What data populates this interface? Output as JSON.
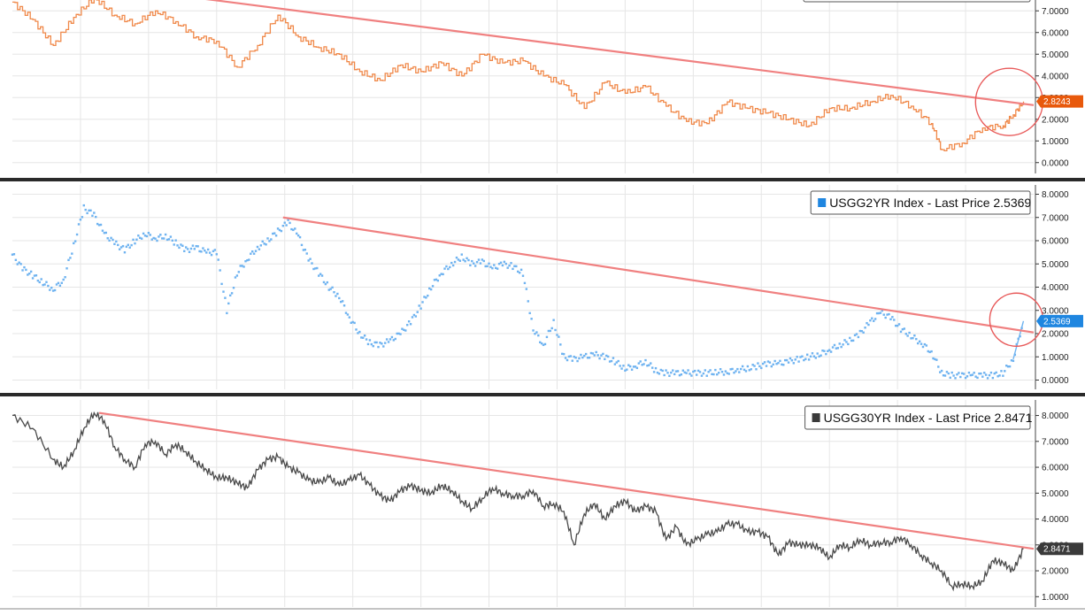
{
  "colors": {
    "background": "#ffffff",
    "grid": "#e6e6e6",
    "separator": "#2a2a2a",
    "trendline": "#f08080",
    "highlight_circle": "#e85a5a",
    "series_10yr": "#f0894a",
    "series_2yr": "#6fb3f0",
    "series_30yr": "#4a4a4a",
    "tag_10yr": "#e8590c",
    "tag_2yr": "#1f86e0",
    "tag_30yr": "#3a3a3a"
  },
  "chart_data": [
    {
      "type": "line",
      "panel": "top",
      "legend": "",
      "last_price_tag": "2.8243",
      "ylim": [
        -0.5,
        7.5
      ],
      "yticks": [
        "0.0000",
        "1.0000",
        "2.0000",
        "3.0000",
        "4.0000",
        "5.0000",
        "6.0000",
        "7.0000"
      ],
      "x_range": [
        0,
        100
      ],
      "series": [
        {
          "style": "step",
          "points": [
            [
              0,
              7.4
            ],
            [
              2,
              6.6
            ],
            [
              4,
              5.4
            ],
            [
              6,
              6.7
            ],
            [
              8,
              7.6
            ],
            [
              10,
              6.8
            ],
            [
              12,
              6.4
            ],
            [
              14,
              7.0
            ],
            [
              16,
              6.5
            ],
            [
              18,
              5.8
            ],
            [
              20,
              5.6
            ],
            [
              22,
              4.4
            ],
            [
              24,
              5.4
            ],
            [
              26,
              6.8
            ],
            [
              28,
              5.8
            ],
            [
              30,
              5.3
            ],
            [
              32,
              5.0
            ],
            [
              34,
              4.2
            ],
            [
              36,
              3.8
            ],
            [
              38,
              4.5
            ],
            [
              40,
              4.2
            ],
            [
              42,
              4.6
            ],
            [
              44,
              4.0
            ],
            [
              46,
              5.0
            ],
            [
              48,
              4.6
            ],
            [
              50,
              4.7
            ],
            [
              52,
              4.0
            ],
            [
              54,
              3.6
            ],
            [
              56,
              2.5
            ],
            [
              58,
              3.7
            ],
            [
              60,
              3.2
            ],
            [
              62,
              3.5
            ],
            [
              64,
              2.6
            ],
            [
              66,
              1.9
            ],
            [
              68,
              1.8
            ],
            [
              70,
              2.8
            ],
            [
              72,
              2.5
            ],
            [
              74,
              2.3
            ],
            [
              76,
              2.0
            ],
            [
              78,
              1.7
            ],
            [
              80,
              2.5
            ],
            [
              82,
              2.5
            ],
            [
              84,
              2.8
            ],
            [
              86,
              3.1
            ],
            [
              88,
              2.6
            ],
            [
              90,
              1.8
            ],
            [
              91,
              0.6
            ],
            [
              93,
              0.9
            ],
            [
              95,
              1.6
            ],
            [
              97,
              1.7
            ],
            [
              98,
              2.2
            ],
            [
              99,
              2.82
            ]
          ]
        }
      ],
      "trendline": [
        [
          18,
          7.6
        ],
        [
          100,
          2.65
        ]
      ],
      "highlight": [
        97.6,
        2.8
      ]
    },
    {
      "type": "scatter",
      "panel": "middle",
      "legend": "USGG2YR Index - Last Price 2.5369",
      "last_price_tag": "2.5369",
      "ylim": [
        -0.4,
        8.4
      ],
      "yticks": [
        "0.0000",
        "1.0000",
        "2.0000",
        "3.0000",
        "4.0000",
        "5.0000",
        "6.0000",
        "7.0000",
        "8.0000"
      ],
      "x_range": [
        0,
        100
      ],
      "series": [
        {
          "style": "dots",
          "points": [
            [
              0,
              5.4
            ],
            [
              1,
              4.8
            ],
            [
              2,
              4.5
            ],
            [
              3,
              4.2
            ],
            [
              4,
              3.9
            ],
            [
              5,
              4.3
            ],
            [
              6,
              5.8
            ],
            [
              7,
              7.4
            ],
            [
              8,
              7.1
            ],
            [
              9,
              6.3
            ],
            [
              10,
              5.9
            ],
            [
              11,
              5.6
            ],
            [
              12,
              6.0
            ],
            [
              13,
              6.3
            ],
            [
              14,
              6.1
            ],
            [
              15,
              6.2
            ],
            [
              16,
              5.9
            ],
            [
              17,
              5.6
            ],
            [
              18,
              5.7
            ],
            [
              19,
              5.5
            ],
            [
              20,
              5.5
            ],
            [
              21,
              3.0
            ],
            [
              22,
              4.6
            ],
            [
              23,
              5.2
            ],
            [
              24,
              5.7
            ],
            [
              25,
              6.0
            ],
            [
              26,
              6.4
            ],
            [
              27,
              6.8
            ],
            [
              28,
              6.2
            ],
            [
              29,
              5.2
            ],
            [
              30,
              4.6
            ],
            [
              31,
              4.0
            ],
            [
              32,
              3.6
            ],
            [
              33,
              2.7
            ],
            [
              34,
              2.0
            ],
            [
              35,
              1.6
            ],
            [
              36,
              1.5
            ],
            [
              37,
              1.7
            ],
            [
              38,
              2.0
            ],
            [
              39,
              2.5
            ],
            [
              40,
              3.2
            ],
            [
              41,
              4.0
            ],
            [
              42,
              4.6
            ],
            [
              43,
              5.0
            ],
            [
              44,
              5.3
            ],
            [
              45,
              5.0
            ],
            [
              46,
              5.1
            ],
            [
              47,
              4.8
            ],
            [
              48,
              5.0
            ],
            [
              49,
              4.9
            ],
            [
              50,
              4.6
            ],
            [
              51,
              2.2
            ],
            [
              52,
              1.5
            ],
            [
              53,
              2.5
            ],
            [
              54,
              1.0
            ],
            [
              55,
              0.9
            ],
            [
              56,
              1.0
            ],
            [
              57,
              1.1
            ],
            [
              58,
              1.0
            ],
            [
              59,
              0.8
            ],
            [
              60,
              0.5
            ],
            [
              61,
              0.6
            ],
            [
              62,
              0.8
            ],
            [
              63,
              0.4
            ],
            [
              64,
              0.3
            ],
            [
              65,
              0.3
            ],
            [
              66,
              0.3
            ],
            [
              67,
              0.3
            ],
            [
              68,
              0.3
            ],
            [
              69,
              0.35
            ],
            [
              70,
              0.35
            ],
            [
              71,
              0.45
            ],
            [
              72,
              0.5
            ],
            [
              73,
              0.6
            ],
            [
              74,
              0.7
            ],
            [
              75,
              0.7
            ],
            [
              76,
              0.8
            ],
            [
              77,
              0.9
            ],
            [
              78,
              1.0
            ],
            [
              79,
              1.1
            ],
            [
              80,
              1.3
            ],
            [
              81,
              1.5
            ],
            [
              82,
              1.7
            ],
            [
              83,
              2.0
            ],
            [
              84,
              2.5
            ],
            [
              85,
              2.9
            ],
            [
              86,
              2.7
            ],
            [
              87,
              2.2
            ],
            [
              88,
              1.9
            ],
            [
              89,
              1.6
            ],
            [
              90,
              1.2
            ],
            [
              91,
              0.3
            ],
            [
              92,
              0.2
            ],
            [
              93,
              0.2
            ],
            [
              94,
              0.2
            ],
            [
              95,
              0.2
            ],
            [
              96,
              0.2
            ],
            [
              97,
              0.3
            ],
            [
              98,
              0.9
            ],
            [
              99,
              2.54
            ]
          ]
        }
      ],
      "trendline": [
        [
          26.5,
          7.0
        ],
        [
          100,
          2.05
        ]
      ],
      "highlight": [
        98.3,
        2.6
      ]
    },
    {
      "type": "line",
      "panel": "bottom",
      "legend": "USGG30YR Index - Last Price 2.8471",
      "last_price_tag": "2.8471",
      "ylim": [
        0.6,
        8.6
      ],
      "yticks": [
        "1.0000",
        "2.0000",
        "3.0000",
        "4.0000",
        "5.0000",
        "6.0000",
        "7.0000",
        "8.0000"
      ],
      "x_range": [
        0,
        100
      ],
      "series": [
        {
          "style": "line",
          "points": [
            [
              0,
              8.0
            ],
            [
              2,
              7.5
            ],
            [
              4,
              6.3
            ],
            [
              5,
              6.0
            ],
            [
              6,
              6.6
            ],
            [
              7,
              7.5
            ],
            [
              8,
              8.1
            ],
            [
              9,
              7.8
            ],
            [
              10,
              6.8
            ],
            [
              11,
              6.3
            ],
            [
              12,
              6.0
            ],
            [
              13,
              6.9
            ],
            [
              14,
              7.0
            ],
            [
              15,
              6.5
            ],
            [
              16,
              6.9
            ],
            [
              17,
              6.6
            ],
            [
              18,
              6.2
            ],
            [
              19,
              5.9
            ],
            [
              20,
              5.6
            ],
            [
              21,
              5.6
            ],
            [
              22,
              5.4
            ],
            [
              23,
              5.2
            ],
            [
              24,
              5.9
            ],
            [
              25,
              6.3
            ],
            [
              26,
              6.4
            ],
            [
              27,
              6.0
            ],
            [
              28,
              5.8
            ],
            [
              29,
              5.5
            ],
            [
              30,
              5.4
            ],
            [
              31,
              5.6
            ],
            [
              32,
              5.3
            ],
            [
              33,
              5.5
            ],
            [
              34,
              5.7
            ],
            [
              35,
              5.3
            ],
            [
              36,
              4.9
            ],
            [
              37,
              4.7
            ],
            [
              38,
              5.1
            ],
            [
              39,
              5.3
            ],
            [
              40,
              5.1
            ],
            [
              41,
              5.0
            ],
            [
              42,
              5.3
            ],
            [
              43,
              5.1
            ],
            [
              44,
              4.7
            ],
            [
              45,
              4.4
            ],
            [
              46,
              4.8
            ],
            [
              47,
              5.2
            ],
            [
              48,
              5.0
            ],
            [
              49,
              4.9
            ],
            [
              50,
              4.9
            ],
            [
              51,
              5.1
            ],
            [
              52,
              4.5
            ],
            [
              53,
              4.6
            ],
            [
              54,
              4.3
            ],
            [
              55,
              3.0
            ],
            [
              56,
              4.2
            ],
            [
              57,
              4.6
            ],
            [
              58,
              4.0
            ],
            [
              59,
              4.5
            ],
            [
              60,
              4.7
            ],
            [
              61,
              4.3
            ],
            [
              62,
              4.5
            ],
            [
              63,
              4.3
            ],
            [
              64,
              3.2
            ],
            [
              65,
              3.7
            ],
            [
              66,
              3.0
            ],
            [
              67,
              3.2
            ],
            [
              68,
              3.4
            ],
            [
              69,
              3.5
            ],
            [
              70,
              3.8
            ],
            [
              71,
              3.8
            ],
            [
              72,
              3.5
            ],
            [
              73,
              3.5
            ],
            [
              74,
              3.3
            ],
            [
              75,
              2.6
            ],
            [
              76,
              3.1
            ],
            [
              77,
              3.0
            ],
            [
              78,
              3.0
            ],
            [
              79,
              2.9
            ],
            [
              80,
              2.5
            ],
            [
              81,
              3.0
            ],
            [
              82,
              2.9
            ],
            [
              83,
              3.2
            ],
            [
              84,
              3.0
            ],
            [
              85,
              3.1
            ],
            [
              86,
              3.1
            ],
            [
              87,
              3.3
            ],
            [
              88,
              3.0
            ],
            [
              89,
              2.6
            ],
            [
              90,
              2.3
            ],
            [
              91,
              2.0
            ],
            [
              92,
              1.4
            ],
            [
              93,
              1.5
            ],
            [
              94,
              1.4
            ],
            [
              95,
              1.6
            ],
            [
              96,
              2.4
            ],
            [
              97,
              2.3
            ],
            [
              98,
              2.0
            ],
            [
              99,
              2.85
            ]
          ]
        }
      ],
      "trendline": [
        [
          8.5,
          8.1
        ],
        [
          100,
          2.85
        ]
      ]
    }
  ]
}
